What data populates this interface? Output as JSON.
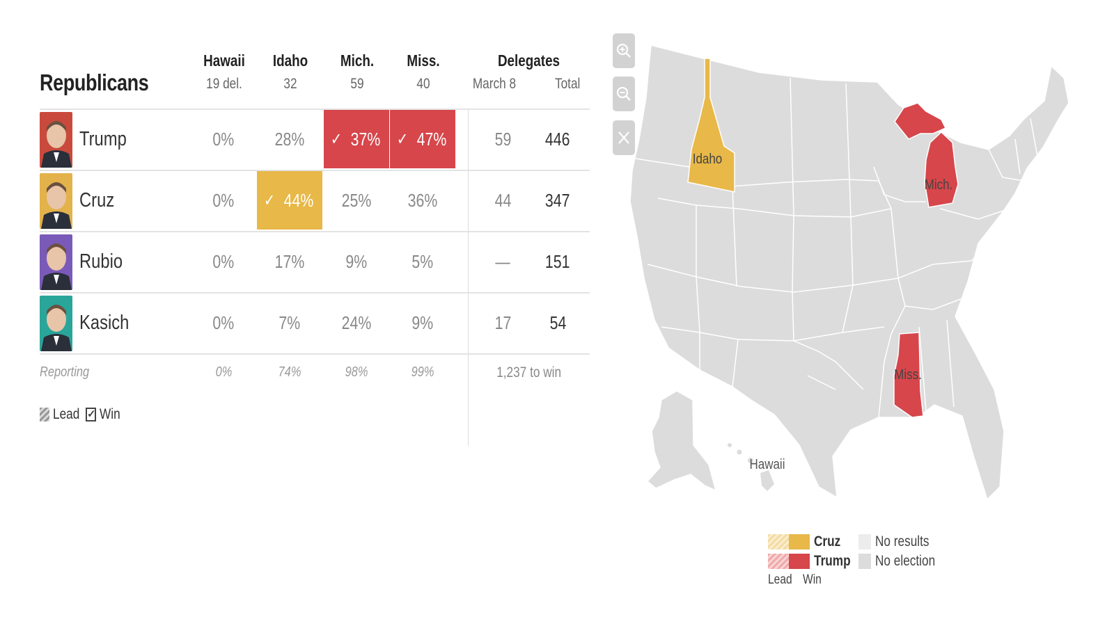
{
  "table": {
    "party": "Republicans",
    "columns": [
      {
        "state": "Hawaii",
        "delegates": "19 del."
      },
      {
        "state": "Idaho",
        "delegates": "32"
      },
      {
        "state": "Mich.",
        "delegates": "59"
      },
      {
        "state": "Miss.",
        "delegates": "40"
      }
    ],
    "delegates_header": "Delegates",
    "delegates_sub": [
      "March 8",
      "Total"
    ],
    "candidates": [
      {
        "name": "Trump",
        "results": [
          "0%",
          "28%",
          "37%",
          "47%"
        ],
        "winner_cols": [
          2,
          3
        ],
        "win_color": "#d6464b",
        "march8": "59",
        "total": "446",
        "avatar_bg": "#c94a3c"
      },
      {
        "name": "Cruz",
        "results": [
          "0%",
          "44%",
          "25%",
          "36%"
        ],
        "winner_cols": [
          1
        ],
        "win_color": "#e8b848",
        "march8": "44",
        "total": "347",
        "avatar_bg": "#e3b24a"
      },
      {
        "name": "Rubio",
        "results": [
          "0%",
          "17%",
          "9%",
          "5%"
        ],
        "winner_cols": [],
        "win_color": "",
        "march8": "—",
        "total": "151",
        "avatar_bg": "#7a5ab8"
      },
      {
        "name": "Kasich",
        "results": [
          "0%",
          "7%",
          "24%",
          "9%"
        ],
        "winner_cols": [],
        "win_color": "",
        "march8": "17",
        "total": "54",
        "avatar_bg": "#2aa59a"
      }
    ],
    "reporting_label": "Reporting",
    "reporting": [
      "0%",
      "74%",
      "98%",
      "99%"
    ],
    "to_win": "1,237 to win",
    "legend": {
      "lead": "Lead",
      "win": "Win"
    }
  },
  "map": {
    "zoom_in_icon": "zoom-in-icon",
    "zoom_out_icon": "zoom-out-icon",
    "reset_icon": "close-icon",
    "labels": {
      "idaho": "Idaho",
      "michigan": "Mich.",
      "mississippi": "Miss.",
      "hawaii": "Hawaii"
    },
    "colors": {
      "cruz": "#e8b848",
      "trump": "#d6464b",
      "no_results": "#ececec",
      "no_election": "#dcdcdc",
      "base": "#dcdcdc"
    }
  },
  "map_legend": {
    "cruz": "Cruz",
    "trump": "Trump",
    "no_results": "No results",
    "no_election": "No election",
    "lead": "Lead",
    "win": "Win"
  }
}
